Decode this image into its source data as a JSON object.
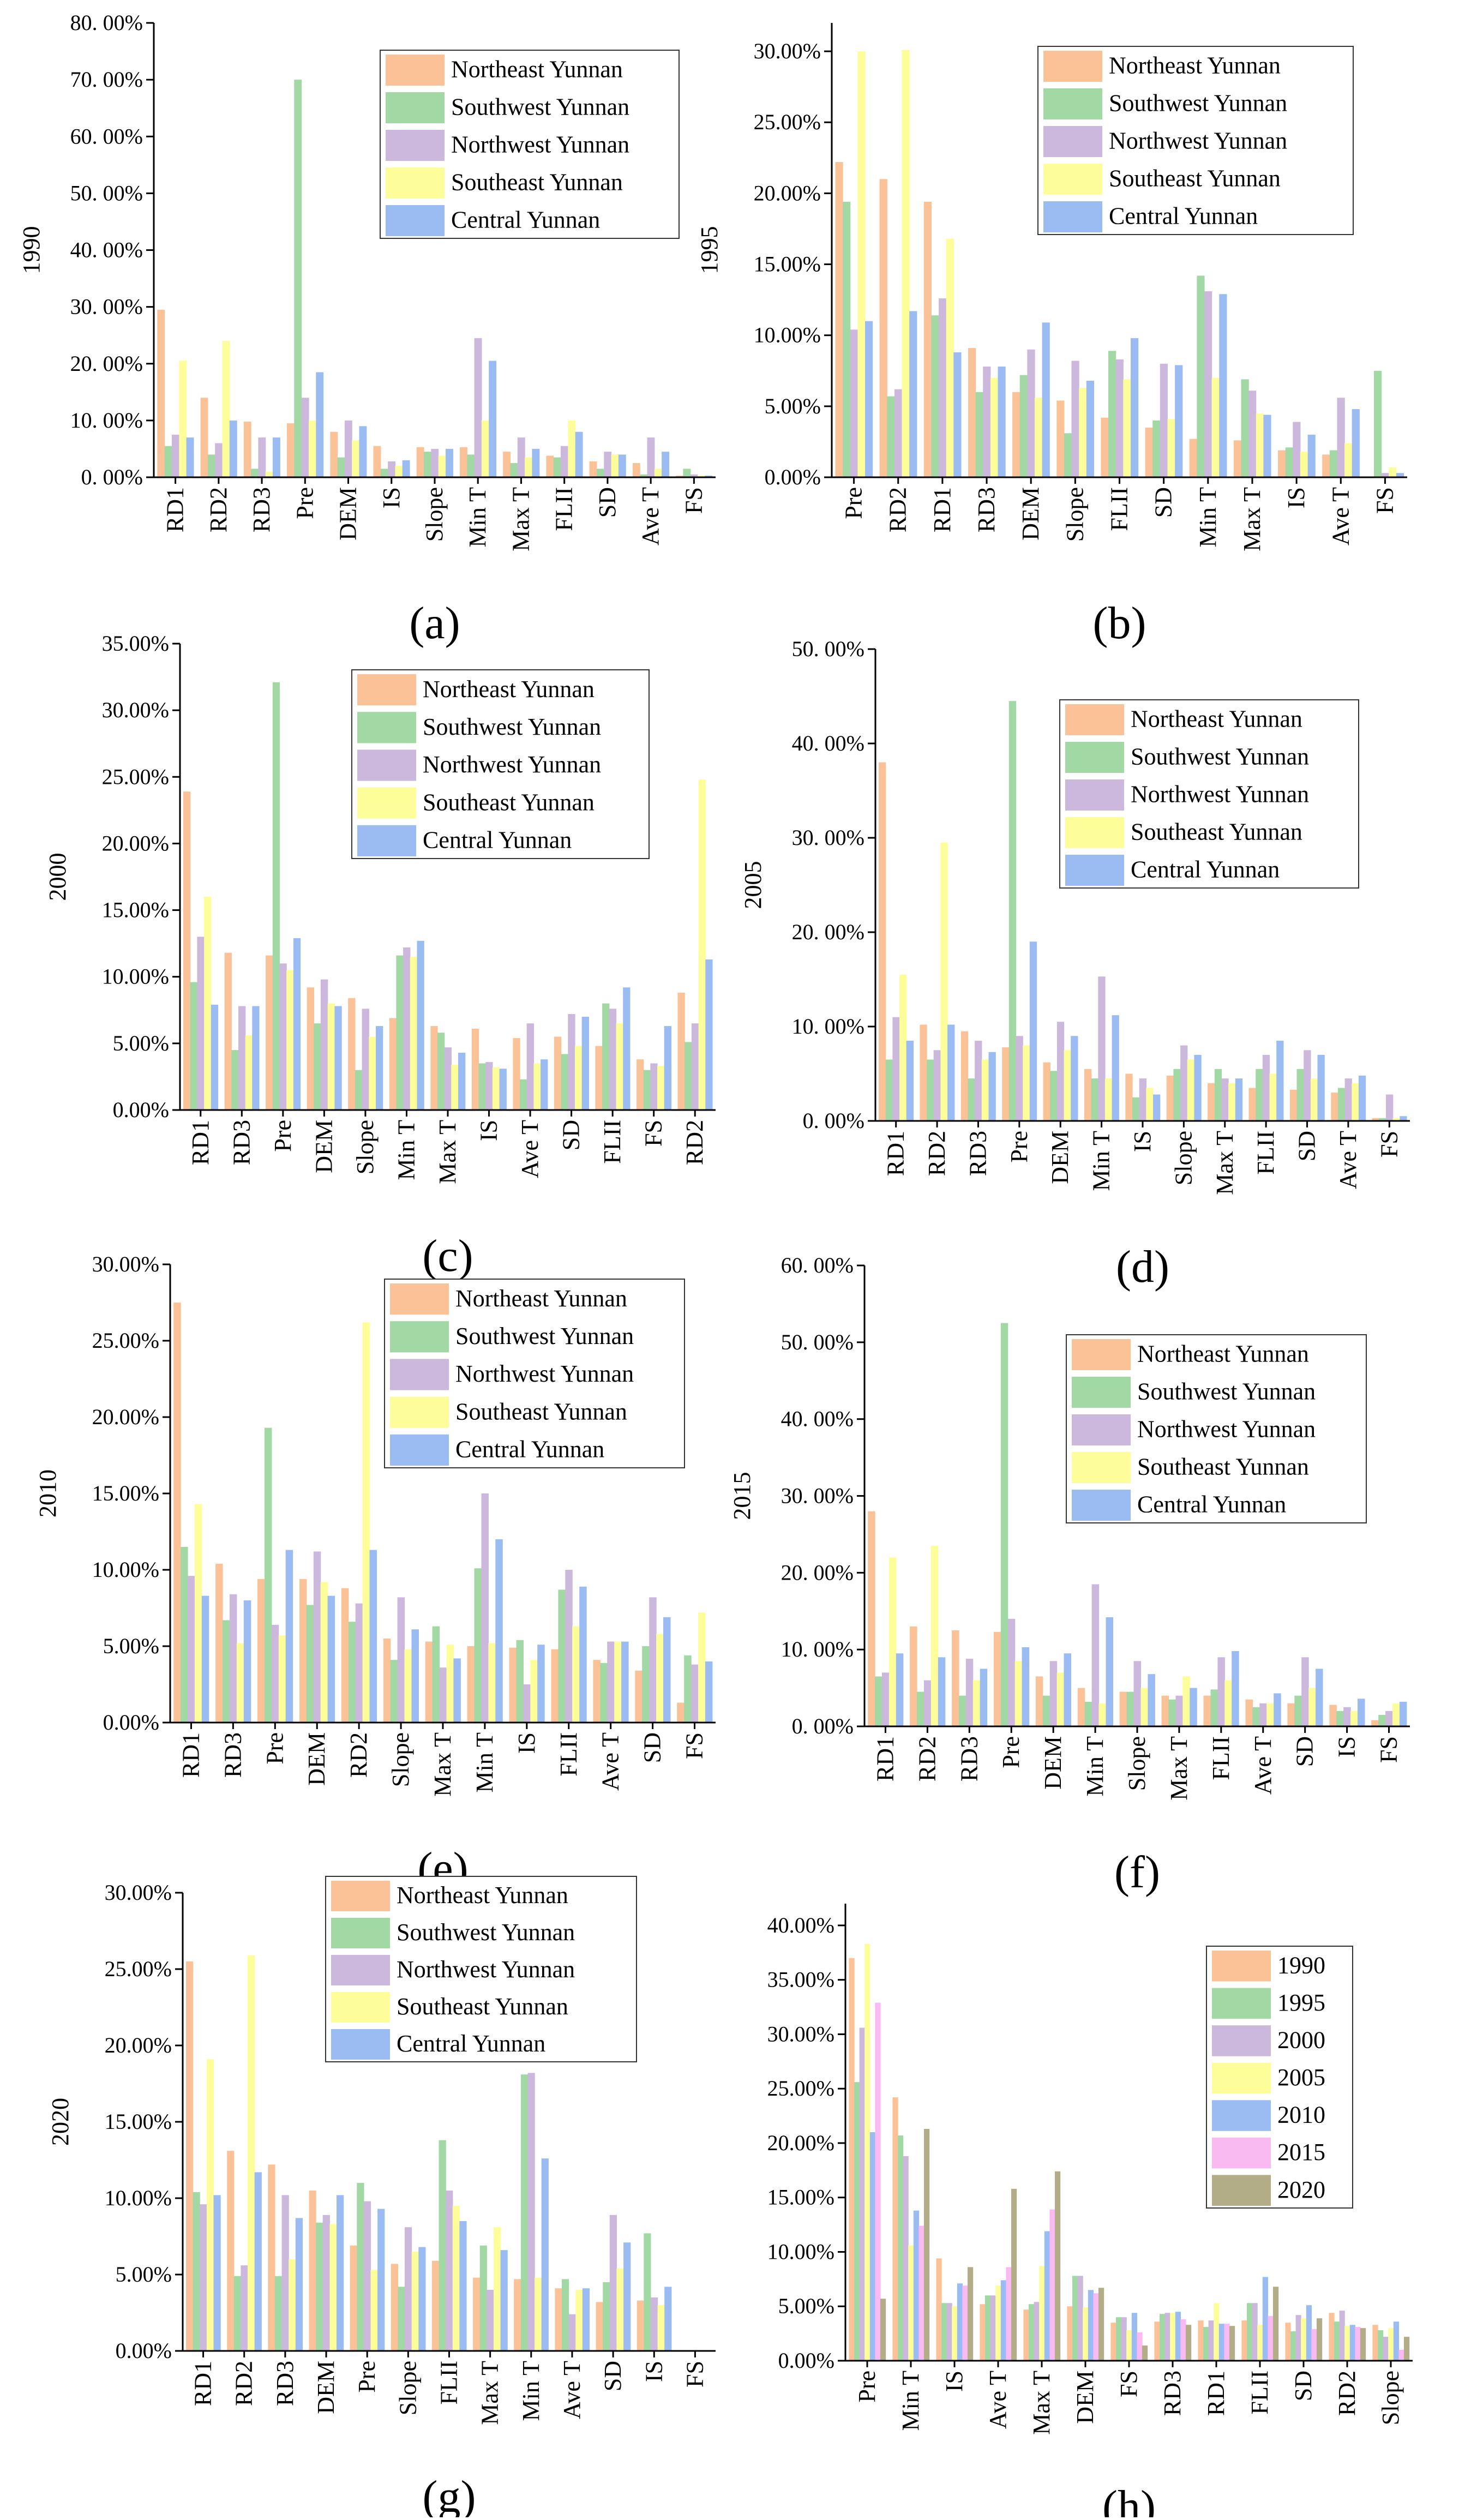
{
  "colors": {
    "Northeast Yunnan": "#fbc197",
    "Southwest Yunnan": "#a2d8a4",
    "Northwest Yunnan": "#cbb8dc",
    "Southeast Yunnan": "#fdfd9a",
    "Central Yunnan": "#9bbcf2",
    "1990": "#fbc197",
    "1995": "#a2d8a4",
    "2000": "#cbb8dc",
    "2005": "#fdfd9a",
    "2010": "#9bbcf2",
    "2015": "#f9b9f1",
    "2020": "#b2ad86"
  },
  "chart_data": [
    {
      "type": "bar",
      "panel_label": "(a)",
      "ylabel": "1990",
      "ylim": [
        0,
        80
      ],
      "yticks": [
        "0. 00%",
        "10. 00%",
        "20. 00%",
        "30. 00%",
        "40. 00%",
        "50. 00%",
        "60. 00%",
        "70. 00%",
        "80. 00%"
      ],
      "legend_position": "top-right",
      "categories": [
        "RD1",
        "RD2",
        "RD3",
        "Pre",
        "DEM",
        "IS",
        "Slope",
        "Min T",
        "Max T",
        "FLII",
        "SD",
        "Ave T",
        "FS"
      ],
      "series": [
        {
          "name": "Northeast Yunnan",
          "values": [
            29.5,
            14,
            9.8,
            9.5,
            8,
            5.5,
            5.3,
            5.3,
            4.5,
            3.8,
            2.8,
            2.5,
            0.3
          ]
        },
        {
          "name": "Southwest Yunnan",
          "values": [
            5.5,
            4,
            1.5,
            70,
            3.5,
            1.5,
            4.5,
            4,
            2.5,
            3.5,
            1.5,
            0.5,
            1.5
          ]
        },
        {
          "name": "Northwest Yunnan",
          "values": [
            7.5,
            6,
            7,
            14,
            10,
            2.8,
            5,
            24.5,
            7,
            5.5,
            4.5,
            7,
            0.5
          ]
        },
        {
          "name": "Southeast Yunnan",
          "values": [
            20.5,
            24,
            1,
            10,
            6.5,
            2,
            3.8,
            10,
            3.5,
            10,
            4,
            1.5,
            0.3
          ]
        },
        {
          "name": "Central Yunnan",
          "values": [
            7,
            10,
            7,
            18.5,
            9,
            3,
            5,
            20.5,
            5,
            8,
            4,
            4.5,
            0.3
          ]
        }
      ]
    },
    {
      "type": "bar",
      "panel_label": "(b)",
      "ylabel": "1995",
      "ylim": [
        0,
        32
      ],
      "yticks": [
        "0.00%",
        "5.00%",
        "10.00%",
        "15.00%",
        "20.00%",
        "25.00%",
        "30.00%"
      ],
      "legend_position": "top-right",
      "categories": [
        "Pre",
        "RD2",
        "RD1",
        "RD3",
        "DEM",
        "Slope",
        "FLII",
        "SD",
        "Min T",
        "Max T",
        "IS",
        "Ave T",
        "FS"
      ],
      "series": [
        {
          "name": "Northeast Yunnan",
          "values": [
            22.2,
            21,
            19.4,
            9.1,
            6,
            5.4,
            4.2,
            3.5,
            2.7,
            2.6,
            1.9,
            1.6,
            0
          ]
        },
        {
          "name": "Southwest Yunnan",
          "values": [
            19.4,
            5.7,
            11.4,
            6,
            7.2,
            3.1,
            8.9,
            4,
            14.2,
            6.9,
            2.1,
            1.9,
            7.5
          ]
        },
        {
          "name": "Northwest Yunnan",
          "values": [
            10.4,
            6.2,
            12.6,
            7.8,
            9,
            8.2,
            8.3,
            8,
            13.1,
            6.1,
            3.9,
            5.6,
            0.3
          ]
        },
        {
          "name": "Southeast Yunnan",
          "values": [
            30,
            30.1,
            16.8,
            7,
            5.6,
            6.3,
            6.9,
            4.1,
            7,
            4.5,
            1.8,
            2.4,
            0.7
          ]
        },
        {
          "name": "Central Yunnan",
          "values": [
            11,
            11.7,
            8.8,
            7.8,
            10.9,
            6.8,
            9.8,
            7.9,
            12.9,
            4.4,
            3,
            4.8,
            0.3
          ]
        }
      ]
    },
    {
      "type": "bar",
      "panel_label": "(c)",
      "ylabel": "2000",
      "ylim": [
        0,
        35
      ],
      "yticks": [
        "0.00%",
        "5.00%",
        "10.00%",
        "15.00%",
        "20.00%",
        "25.00%",
        "30.00%",
        "35.00%"
      ],
      "legend_position": "top-right",
      "categories": [
        "RD1",
        "RD3",
        "Pre",
        "DEM",
        "Slope",
        "Min T",
        "Max T",
        "IS",
        "Ave T",
        "SD",
        "FLII",
        "FS",
        "RD2"
      ],
      "series": [
        {
          "name": "Northeast Yunnan",
          "values": [
            23.9,
            11.8,
            11.6,
            9.2,
            8.4,
            6.9,
            6.3,
            6.1,
            5.4,
            5.5,
            4.8,
            3.8,
            8.8
          ]
        },
        {
          "name": "Southwest Yunnan",
          "values": [
            9.6,
            4.5,
            32.1,
            6.5,
            3,
            11.6,
            5.8,
            3.5,
            2.3,
            4.2,
            8,
            3,
            5.1
          ]
        },
        {
          "name": "Northwest Yunnan",
          "values": [
            13,
            7.8,
            11,
            9.8,
            7.6,
            12.2,
            4.7,
            3.6,
            6.5,
            7.2,
            7.6,
            3.5,
            6.5
          ]
        },
        {
          "name": "Southeast Yunnan",
          "values": [
            16,
            5.6,
            10.5,
            8,
            5.5,
            11.5,
            3.4,
            3.2,
            3.5,
            4.8,
            6.5,
            3.3,
            24.8
          ]
        },
        {
          "name": "Central Yunnan",
          "values": [
            7.9,
            7.8,
            12.9,
            7.8,
            6.3,
            12.7,
            4.3,
            3.1,
            3.8,
            7,
            9.2,
            6.3,
            11.3
          ]
        }
      ]
    },
    {
      "type": "bar",
      "panel_label": "(d)",
      "ylabel": "2005",
      "ylim": [
        0,
        50
      ],
      "yticks": [
        "0. 00%",
        "10. 00%",
        "20. 00%",
        "30. 00%",
        "40. 00%",
        "50. 00%"
      ],
      "legend_position": "top-right",
      "categories": [
        "RD1",
        "RD2",
        "RD3",
        "Pre",
        "DEM",
        "Min T",
        "IS",
        "Slope",
        "Max T",
        "FLII",
        "SD",
        "Ave T",
        "FS"
      ],
      "series": [
        {
          "name": "Northeast Yunnan",
          "values": [
            38,
            10.2,
            9.5,
            7.8,
            6.2,
            5.5,
            5,
            4.8,
            4,
            3.5,
            3.3,
            3,
            0.3
          ]
        },
        {
          "name": "Southwest Yunnan",
          "values": [
            6.5,
            6.5,
            4.5,
            44.5,
            5.3,
            4.5,
            2.5,
            5.5,
            5.5,
            5.5,
            5.5,
            3.5,
            0.3
          ]
        },
        {
          "name": "Northwest Yunnan",
          "values": [
            11,
            7.5,
            8.5,
            9,
            10.5,
            15.3,
            4.5,
            8,
            4.5,
            7,
            7.5,
            4.5,
            2.8
          ]
        },
        {
          "name": "Southeast Yunnan",
          "values": [
            15.5,
            29.5,
            6.5,
            8,
            7.5,
            4.5,
            3.5,
            6.5,
            4,
            5,
            4.5,
            4,
            0.3
          ]
        },
        {
          "name": "Central Yunnan",
          "values": [
            8.5,
            10.2,
            7.3,
            19,
            9,
            11.2,
            2.8,
            7,
            4.5,
            8.5,
            7,
            4.8,
            0.5
          ]
        }
      ]
    },
    {
      "type": "bar",
      "panel_label": "(e)",
      "ylabel": "2010",
      "ylim": [
        0,
        30
      ],
      "yticks": [
        "0.00%",
        "5.00%",
        "10.00%",
        "15.00%",
        "20.00%",
        "25.00%",
        "30.00%"
      ],
      "legend_position": "top-right",
      "categories": [
        "RD1",
        "RD3",
        "Pre",
        "DEM",
        "RD2",
        "Slope",
        "Max T",
        "Min T",
        "IS",
        "FLII",
        "Ave T",
        "SD",
        "FS"
      ],
      "series": [
        {
          "name": "Northeast Yunnan",
          "values": [
            27.5,
            10.4,
            9.4,
            9.4,
            8.8,
            5.5,
            5.3,
            5,
            4.9,
            4.8,
            4.1,
            3.4,
            1.3
          ]
        },
        {
          "name": "Southwest Yunnan",
          "values": [
            11.5,
            6.7,
            19.3,
            7.7,
            6.6,
            4.1,
            6.3,
            10.1,
            5.4,
            8.7,
            3.9,
            5,
            4.4
          ]
        },
        {
          "name": "Northwest Yunnan",
          "values": [
            9.6,
            8.4,
            6.4,
            11.2,
            7.8,
            8.2,
            3.6,
            15,
            2.5,
            10,
            5.3,
            8.2,
            3.8
          ]
        },
        {
          "name": "Southeast Yunnan",
          "values": [
            14.3,
            5.2,
            5.7,
            9.2,
            26.2,
            4.8,
            5.1,
            5.2,
            4.1,
            6.3,
            5.3,
            5.8,
            7.2
          ]
        },
        {
          "name": "Central Yunnan",
          "values": [
            8.3,
            8,
            11.3,
            8.3,
            11.3,
            6.1,
            4.2,
            12,
            5.1,
            8.9,
            5.3,
            6.9,
            4
          ]
        }
      ]
    },
    {
      "type": "bar",
      "panel_label": "(f)",
      "ylabel": "2015",
      "ylim": [
        0,
        60
      ],
      "yticks": [
        "0. 00%",
        "10. 00%",
        "20. 00%",
        "30. 00%",
        "40. 00%",
        "50. 00%",
        "60. 00%"
      ],
      "legend_position": "top-right",
      "categories": [
        "RD1",
        "RD2",
        "RD3",
        "Pre",
        "DEM",
        "Min T",
        "Slope",
        "Max T",
        "FLII",
        "Ave T",
        "SD",
        "IS",
        "FS"
      ],
      "series": [
        {
          "name": "Northeast Yunnan",
          "values": [
            28,
            13,
            12.5,
            12.3,
            6.5,
            5,
            4.5,
            4,
            4,
            3.5,
            3,
            2.8,
            0.8
          ]
        },
        {
          "name": "Southwest Yunnan",
          "values": [
            6.5,
            4.5,
            4,
            52.5,
            4,
            3.2,
            4.5,
            3.5,
            4.8,
            2.5,
            4,
            2,
            1.5
          ]
        },
        {
          "name": "Northwest Yunnan",
          "values": [
            7,
            6,
            8.8,
            14,
            8.5,
            18.5,
            8.5,
            4,
            9,
            3,
            9,
            2.5,
            2
          ]
        },
        {
          "name": "Southeast Yunnan",
          "values": [
            22,
            23.5,
            6,
            8.5,
            7,
            3,
            5,
            6.5,
            6,
            3,
            5,
            2,
            3
          ]
        },
        {
          "name": "Central Yunnan",
          "values": [
            9.5,
            9,
            7.5,
            10.3,
            9.5,
            14.2,
            6.8,
            5,
            9.8,
            4.3,
            7.5,
            3.6,
            3.2
          ]
        }
      ]
    },
    {
      "type": "bar",
      "panel_label": "(g)",
      "ylabel": "2020",
      "ylim": [
        0,
        30
      ],
      "yticks": [
        "0.00%",
        "5.00%",
        "10.00%",
        "15.00%",
        "20.00%",
        "25.00%",
        "30.00%"
      ],
      "legend_position": "top-left",
      "categories": [
        "RD1",
        "RD2",
        "RD3",
        "DEM",
        "Pre",
        "Slope",
        "FLII",
        "Max T",
        "Min T",
        "Ave T",
        "SD",
        "IS",
        "FS"
      ],
      "series": [
        {
          "name": "Northeast Yunnan",
          "values": [
            25.5,
            13.1,
            12.2,
            10.5,
            6.9,
            5.7,
            5.9,
            4.8,
            4.7,
            4.1,
            3.2,
            3.3,
            0
          ]
        },
        {
          "name": "Southwest Yunnan",
          "values": [
            10.4,
            4.9,
            4.9,
            8.4,
            11,
            4.2,
            13.8,
            6.9,
            18.1,
            4.7,
            4.5,
            7.7,
            0
          ]
        },
        {
          "name": "Northwest Yunnan",
          "values": [
            9.6,
            5.6,
            10.2,
            8.9,
            9.8,
            8.1,
            10.5,
            4,
            18.2,
            2.4,
            8.9,
            3.5,
            0
          ]
        },
        {
          "name": "Southeast Yunnan",
          "values": [
            19.1,
            25.9,
            6,
            8.3,
            5.3,
            6.5,
            9.5,
            8.1,
            4.8,
            4,
            5.4,
            3,
            0
          ]
        },
        {
          "name": "Central Yunnan",
          "values": [
            10.2,
            11.7,
            8.7,
            10.2,
            9.3,
            6.8,
            8.5,
            6.6,
            12.6,
            4.1,
            7.1,
            4.2,
            0
          ]
        }
      ]
    },
    {
      "type": "bar",
      "panel_label": "(h)",
      "ylabel": "",
      "ylim": [
        0,
        42
      ],
      "yticks": [
        "0.00%",
        "5.00%",
        "10.00%",
        "15.00%",
        "20.00%",
        "25.00%",
        "30.00%",
        "35.00%",
        "40.00%"
      ],
      "legend_position": "top-right",
      "categories": [
        "Pre",
        "Min T",
        "IS",
        "Ave T",
        "Max T",
        "DEM",
        "FS",
        "RD3",
        "RD1",
        "FLII",
        "SD",
        "RD2",
        "Slope"
      ],
      "series": [
        {
          "name": "1990",
          "values": [
            37,
            24.2,
            9.4,
            5.2,
            4.7,
            5,
            3.5,
            3.6,
            3.7,
            3.7,
            3.5,
            4.4,
            3.3
          ]
        },
        {
          "name": "1995",
          "values": [
            25.6,
            20.7,
            5.3,
            6,
            5.2,
            7.8,
            4,
            4.3,
            3.1,
            5.3,
            2.7,
            3.6,
            2.8
          ]
        },
        {
          "name": "2000",
          "values": [
            30.6,
            18.8,
            5.3,
            6,
            5.4,
            7.8,
            4,
            4.4,
            3.7,
            5.3,
            4.2,
            4.6,
            2.2
          ]
        },
        {
          "name": "2005",
          "values": [
            38.3,
            10.6,
            5,
            6.9,
            8.7,
            4.9,
            2.8,
            4.4,
            5.3,
            3.3,
            3.9,
            3.2,
            3
          ]
        },
        {
          "name": "2010",
          "values": [
            21,
            13.8,
            7.1,
            7.4,
            11.9,
            6.5,
            4.4,
            4.5,
            3.4,
            7.7,
            5.1,
            3.3,
            3.6
          ]
        },
        {
          "name": "2015",
          "values": [
            32.9,
            12.4,
            6.9,
            8.6,
            13.9,
            6.2,
            2.6,
            3.8,
            3.4,
            4.1,
            2.9,
            3.1,
            1
          ]
        },
        {
          "name": "2020",
          "values": [
            5.7,
            21.3,
            8.6,
            15.8,
            17.4,
            6.7,
            1.4,
            3.3,
            3.2,
            6.8,
            3.9,
            3,
            2.2
          ]
        }
      ]
    }
  ]
}
